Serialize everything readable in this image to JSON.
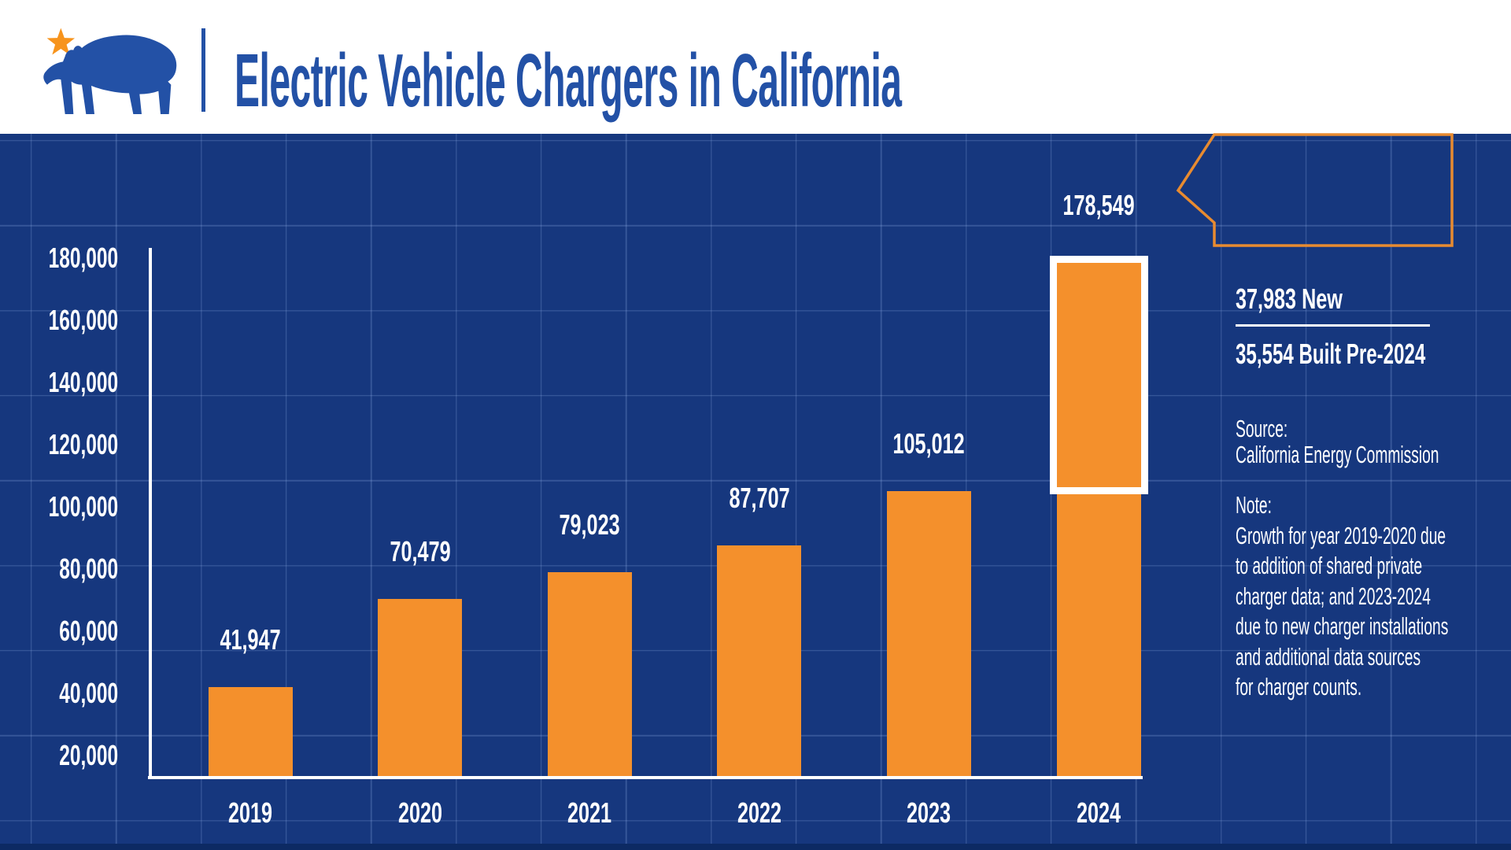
{
  "header": {
    "title": "Electric Vehicle Chargers in California",
    "logo": "California grizzly bear with star"
  },
  "chart_data": {
    "type": "bar",
    "title": "Electric Vehicle Chargers in California",
    "categories": [
      "2019",
      "2020",
      "2021",
      "2022",
      "2023",
      "2024"
    ],
    "values": [
      41947,
      70479,
      79023,
      87707,
      105012,
      178549
    ],
    "value_labels": [
      "41,947",
      "70,479",
      "79,023",
      "87,707",
      "105,012",
      "178,549"
    ],
    "xlabel": "",
    "ylabel": "",
    "ylim": [
      0,
      190000
    ],
    "yticks": [
      180000,
      160000,
      140000,
      120000,
      100000,
      80000,
      60000,
      40000,
      20000
    ],
    "ytick_labels": [
      "180,000",
      "160,000",
      "140,000",
      "120,000",
      "100,000",
      "80,000",
      "60,000",
      "40,000",
      "20,000"
    ],
    "grid": "blueprint square grid, not aligned to axis values",
    "legend": "none",
    "bar_color": "#F4902C",
    "highlight": {
      "category": "2024",
      "outlined_segment_top": 178549,
      "outlined_segment_bottom": 105012,
      "outline_color": "#FFFFFF"
    }
  },
  "callout": {
    "line1": "37,983 New",
    "line2": "35,554 Built Pre-2024"
  },
  "source": {
    "label": "Source:",
    "text": "California Energy Commission"
  },
  "note": {
    "label": "Note:",
    "lines": [
      "Growth for year 2019-2020 due",
      "to addition of shared private",
      "charger data; and 2023-2024",
      "due to new charger installations",
      "and additional data sources",
      "for charger counts."
    ]
  },
  "colors": {
    "background": "#16377E",
    "header_background": "#FFFFFF",
    "brand_blue": "#2351A6",
    "bar_orange": "#F4902C",
    "star_orange": "#F7941D",
    "callout_border": "#E88B30",
    "axis_white": "#FFFFFF"
  }
}
